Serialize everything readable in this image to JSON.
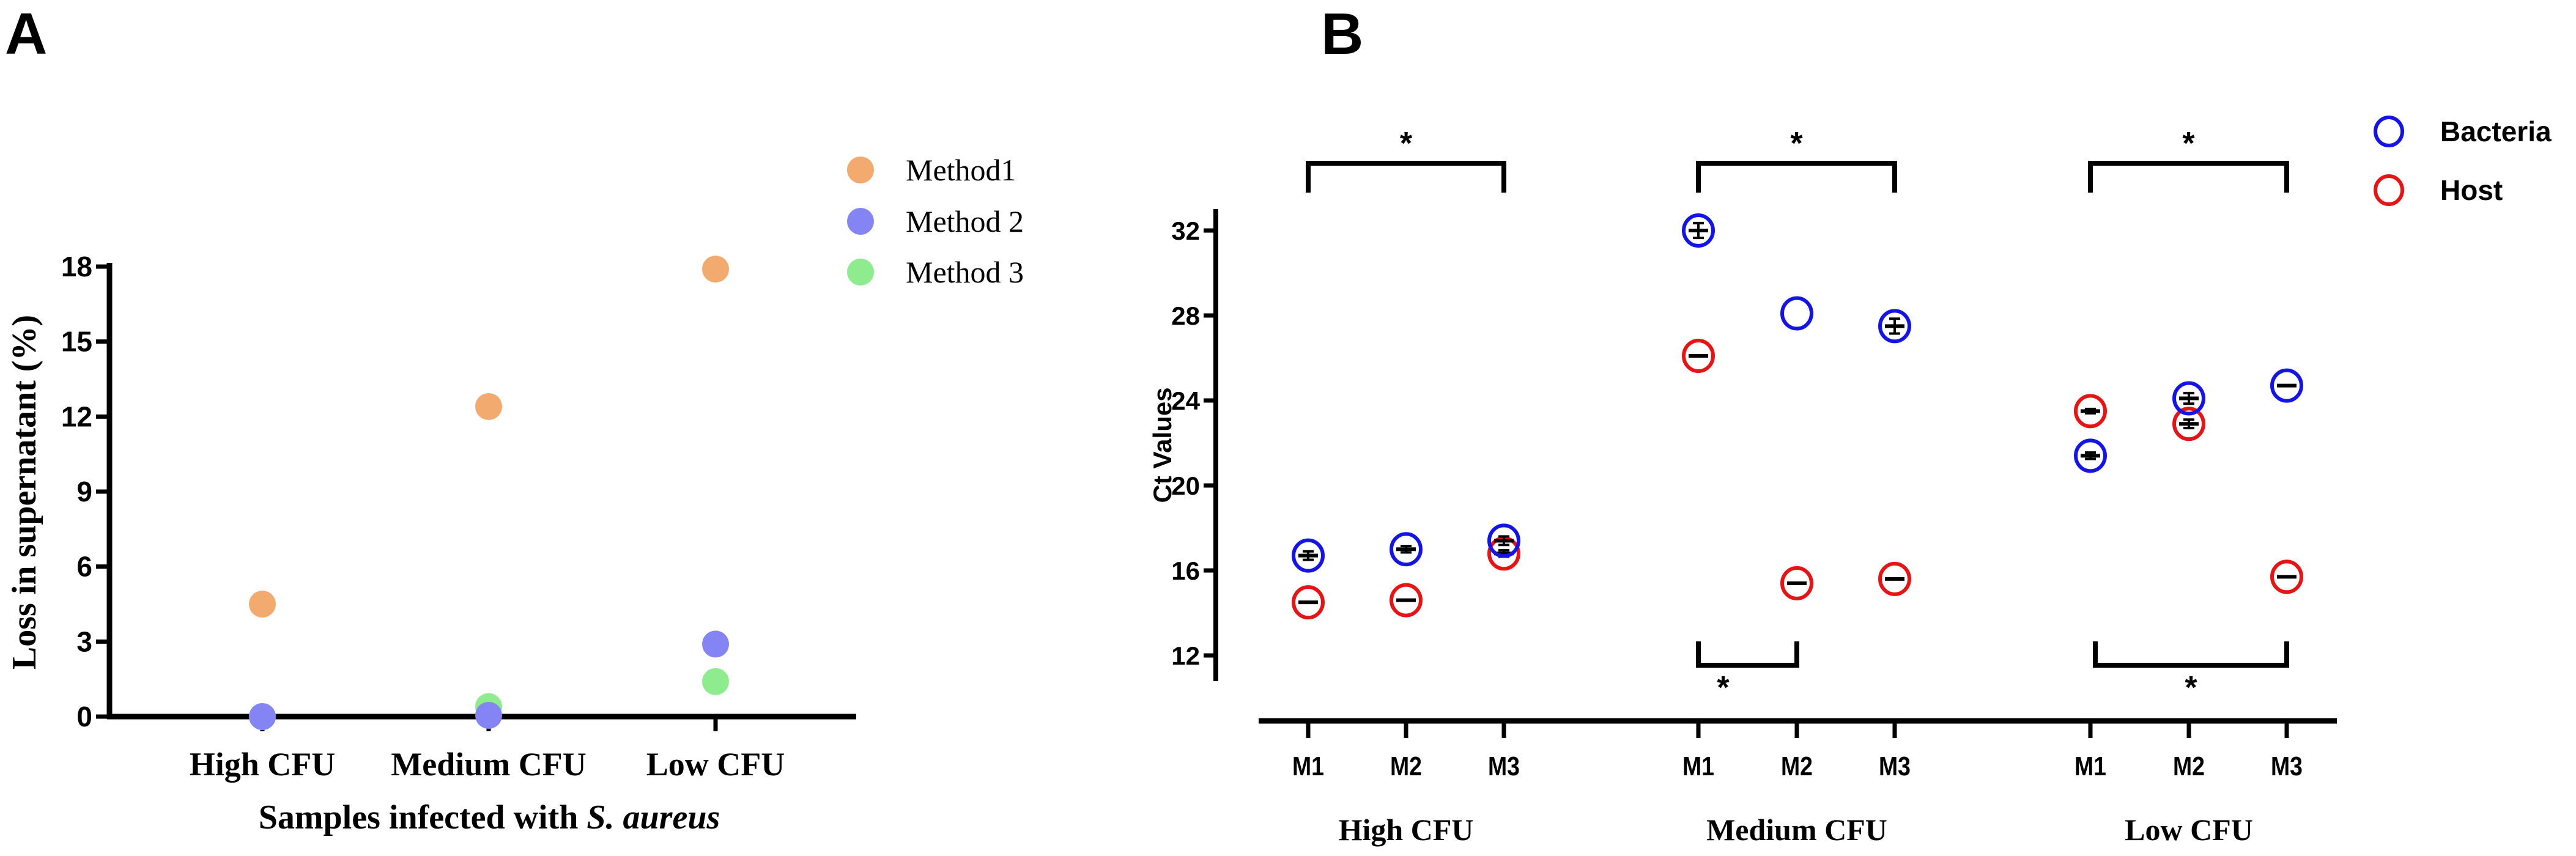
{
  "panel_labels": {
    "a": "A",
    "b": "B"
  },
  "chart_data": [
    {
      "type": "scatter",
      "panel": "A",
      "categories": [
        "High CFU",
        "Medium CFU",
        "Low CFU"
      ],
      "xlabel_prefix": "Samples infected with ",
      "xlabel_italic": "S. aureus",
      "ylabel": "Loss in supernatant (%)",
      "ylim": [
        0,
        18
      ],
      "yticks": [
        0,
        3,
        6,
        9,
        12,
        15,
        18
      ],
      "legend_position": "top-right",
      "series": [
        {
          "name": "Method1",
          "color": "#F2AA6E",
          "values": [
            4.5,
            12.4,
            17.9
          ]
        },
        {
          "name": "Method 3",
          "color": "#8EEB8E",
          "values": [
            0.0,
            0.4,
            1.4
          ]
        },
        {
          "name": "Method 2",
          "color": "#8484F4",
          "values": [
            0.0,
            0.05,
            2.9
          ]
        }
      ],
      "legend_order": [
        "Method1",
        "Method 2",
        "Method 3"
      ]
    },
    {
      "type": "scatter",
      "panel": "B",
      "groups": [
        "High CFU",
        "Medium CFU",
        "Low CFU"
      ],
      "categories": [
        "M1",
        "M2",
        "M3"
      ],
      "ylabel": "Ct Values",
      "ylim": [
        11,
        33
      ],
      "yticks": [
        12,
        16,
        20,
        24,
        28,
        32
      ],
      "legend_position": "top-right",
      "series": [
        {
          "name": "Bacteria",
          "color": "#1414E6",
          "values": [
            [
              16.7,
              17.0,
              17.4
            ],
            [
              32.0,
              28.1,
              27.5
            ],
            [
              21.4,
              24.1,
              24.7
            ]
          ],
          "sd": [
            [
              0.2,
              0.15,
              0.2
            ],
            [
              0.35,
              0,
              0.35
            ],
            [
              0.15,
              0.25,
              0.05
            ]
          ]
        },
        {
          "name": "Host",
          "color": "#E61414",
          "values": [
            [
              14.5,
              14.6,
              16.8
            ],
            [
              26.1,
              15.4,
              15.6
            ],
            [
              23.5,
              22.9,
              15.7
            ]
          ],
          "sd": [
            [
              0.05,
              0.05,
              0.15
            ],
            [
              0.05,
              0.05,
              0.05
            ],
            [
              0.1,
              0.2,
              0.05
            ]
          ]
        }
      ],
      "significance": [
        {
          "group": 0,
          "from": 0,
          "to": 2,
          "side": "top",
          "label": "*"
        },
        {
          "group": 1,
          "from": 0,
          "to": 2,
          "side": "top",
          "label": "*"
        },
        {
          "group": 2,
          "from": 0,
          "to": 2,
          "side": "top",
          "label": "*"
        },
        {
          "group": 1,
          "from": 0,
          "to": 1,
          "side": "bottom",
          "label": "*"
        },
        {
          "group": 2,
          "from": 0,
          "to": 2,
          "side": "bottom",
          "label": "*"
        }
      ]
    }
  ]
}
